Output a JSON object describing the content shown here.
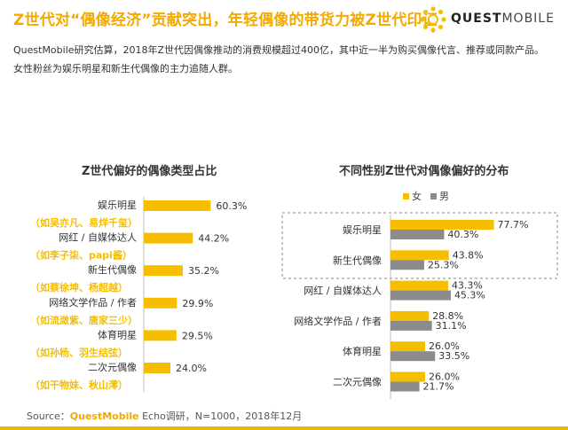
{
  "header": {
    "title": "Z世代对“偶像经济”贡献突出，年轻偶像的带货力被Z世代印证",
    "logo_q": "QUEST",
    "logo_m": "MOBILE"
  },
  "description": [
    "QuestMobile研究估算，2018年Z世代因偶像推动的消费规模超过400亿，其中近一半为购买偶像代言、推荐或同款产品。",
    "女性粉丝为娱乐明星和新生代偶像的主力追随人群。"
  ],
  "colors": {
    "yellow": "#f5be00",
    "gray": "#8c8c8c",
    "pink": "#ec9aaf"
  },
  "chart_data": [
    {
      "type": "bar",
      "orientation": "horizontal",
      "title": "Z世代偏好的偶像类型占比",
      "categories": [
        "娱乐明星",
        "网红 / 自媒体达人",
        "新生代偶像",
        "网络文学作品 / 作者",
        "体育明星",
        "二次元偶像"
      ],
      "examples": [
        "（如吴亦凡、易烊千玺）",
        "（如李子柒、papi酱）",
        "（如蔡徐坤、杨超越）",
        "（如流潋紫、唐家三少）",
        "（如孙杨、羽生结弦）",
        "（如干物妹、秋山澪）"
      ],
      "values": [
        60.3,
        44.2,
        35.2,
        29.9,
        29.5,
        24.0
      ],
      "value_labels": [
        "60.3%",
        "44.2%",
        "35.2%",
        "29.9%",
        "29.5%",
        "24.0%"
      ],
      "unit": "%",
      "xlim": [
        0,
        100
      ]
    },
    {
      "type": "bar",
      "orientation": "horizontal",
      "title": "不同性别Z世代对偶像偏好的分布",
      "categories": [
        "娱乐明星",
        "新生代偶像",
        "网红 / 自媒体达人",
        "网络文学作品 / 作者",
        "体育明星",
        "二次元偶像"
      ],
      "series": [
        {
          "name": "女",
          "color": "#f5be00",
          "values": [
            77.7,
            43.8,
            43.3,
            28.8,
            26.0,
            26.0
          ],
          "value_labels": [
            "77.7%",
            "43.8%",
            "43.3%",
            "28.8%",
            "26.0%",
            "26.0%"
          ]
        },
        {
          "name": "男",
          "color": "#8c8c8c",
          "values": [
            40.3,
            25.3,
            45.3,
            31.1,
            33.5,
            21.7
          ],
          "value_labels": [
            "40.3%",
            "25.3%",
            "45.3%",
            "31.1%",
            "33.5%",
            "21.7%"
          ]
        }
      ],
      "unit": "%",
      "xlim": [
        0,
        100
      ],
      "legend": "top"
    }
  ],
  "source": {
    "prefix": "Source：",
    "brand": "QuestMobile",
    "text": " Echo调研，N=1000，2018年12月"
  }
}
